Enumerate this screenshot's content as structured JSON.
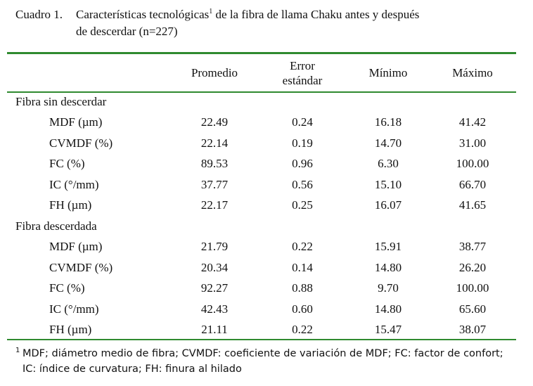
{
  "caption": {
    "number": "Cuadro 1.",
    "line1": "Características tecnológicas",
    "sup": "1",
    "line1_rest": " de la fibra de llama Chaku antes y después",
    "line2": "de descerdar (n=227)"
  },
  "table": {
    "headers": [
      "Promedio",
      "Error",
      "estándar",
      "Mínimo",
      "Máximo"
    ],
    "groups": [
      {
        "label": "Fibra sin descerdar",
        "rows": [
          {
            "label": "MDF (µm)",
            "values": [
              "22.49",
              "0.24",
              "16.18",
              "41.42"
            ]
          },
          {
            "label": "CVMDF (%)",
            "values": [
              "22.14",
              "0.19",
              "14.70",
              "31.00"
            ]
          },
          {
            "label": "FC (%)",
            "values": [
              "89.53",
              "0.96",
              "6.30",
              "100.00"
            ]
          },
          {
            "label": "IC (°/mm)",
            "values": [
              "37.77",
              "0.56",
              "15.10",
              "66.70"
            ]
          },
          {
            "label": "FH (µm)",
            "values": [
              "22.17",
              "0.25",
              "16.07",
              "41.65"
            ]
          }
        ]
      },
      {
        "label": "Fibra descerdada",
        "rows": [
          {
            "label": "MDF (µm)",
            "values": [
              "21.79",
              "0.22",
              "15.91",
              "38.77"
            ]
          },
          {
            "label": "CVMDF (%)",
            "values": [
              "20.34",
              "0.14",
              "14.80",
              "26.20"
            ]
          },
          {
            "label": "FC (%)",
            "values": [
              "92.27",
              "0.88",
              "9.70",
              "100.00"
            ]
          },
          {
            "label": "IC (°/mm)",
            "values": [
              "42.43",
              "0.60",
              "14.80",
              "65.60"
            ]
          },
          {
            "label": "FH (µm)",
            "values": [
              "21.11",
              "0.22",
              "15.47",
              "38.07"
            ]
          }
        ]
      }
    ]
  },
  "footnote": {
    "sup": "1",
    "text": "MDF; diámetro medio de fibra; CVMDF: coeficiente de variación de MDF; FC: factor de confort; IC: índice de curvatura; FH: finura al hilado"
  },
  "colors": {
    "rule": "#2f8a2f"
  }
}
